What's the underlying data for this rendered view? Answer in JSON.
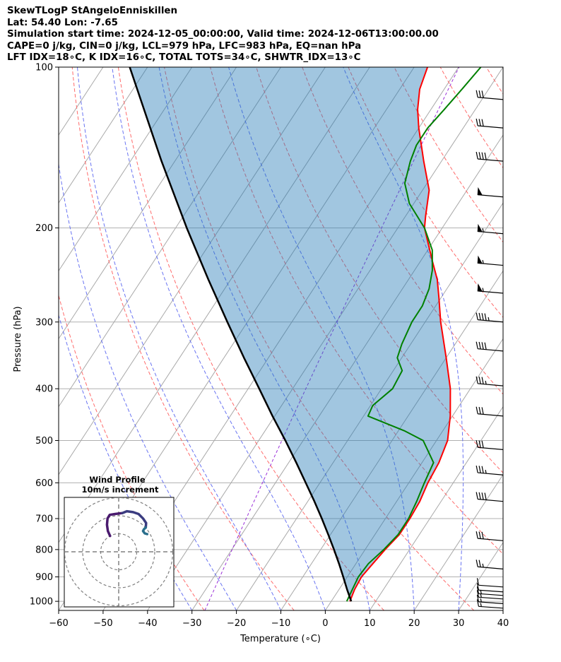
{
  "header": {
    "line1": "SkewTLogP StAngeloEnniskillen",
    "line2": "Lat: 54.40   Lon: -7.65",
    "line3": "Simulation start time: 2024-12-05_00:00:00, Valid time: 2024-12-06T13:00:00.00",
    "line4": "CAPE=0 j/kg, CIN=0 j/kg, LCL=979 hPa, LFC=983 hPa, EQ=nan hPa",
    "line5": "LFT IDX=18∘C, K IDX=16∘C, TOTAL TOTS=34∘C, SHWTR_IDX=13∘C"
  },
  "chart_data": [
    {
      "type": "line",
      "subtype": "skew-t log-p",
      "xlabel": "Temperature (∘C)",
      "ylabel": "Pressure (hPa)",
      "xlim": [
        -60,
        40
      ],
      "ylim": [
        1040,
        100
      ],
      "y_scale": "log",
      "x_ticks": [
        "−60",
        "−50",
        "−40",
        "−30",
        "−20",
        "−10",
        "0",
        "10",
        "20",
        "30",
        "40"
      ],
      "y_ticks": [
        "100",
        "200",
        "300",
        "400",
        "500",
        "600",
        "700",
        "800",
        "900",
        "1000"
      ],
      "grid": true,
      "series": [
        {
          "role": "temperature",
          "color": "#ff0000",
          "points": [
            [
              1000,
              4.2
            ],
            [
              950,
              3.5
            ],
            [
              900,
              3.2
            ],
            [
              850,
              3.8
            ],
            [
              800,
              4.5
            ],
            [
              750,
              5.5
            ],
            [
              700,
              5.5
            ],
            [
              650,
              5.2
            ],
            [
              600,
              4.3
            ],
            [
              550,
              3.8
            ],
            [
              500,
              2.5
            ],
            [
              450,
              -0.5
            ],
            [
              400,
              -4.5
            ],
            [
              350,
              -10
            ],
            [
              300,
              -16.5
            ],
            [
              270,
              -20.5
            ],
            [
              250,
              -23.5
            ],
            [
              230,
              -27.5
            ],
            [
              200,
              -34
            ],
            [
              190,
              -35.5
            ],
            [
              170,
              -38.5
            ],
            [
              150,
              -44
            ],
            [
              130,
              -50
            ],
            [
              120,
              -53
            ],
            [
              110,
              -55.5
            ],
            [
              100,
              -57
            ]
          ]
        },
        {
          "role": "dewpoint",
          "color": "#008000",
          "points": [
            [
              1000,
              3.5
            ],
            [
              950,
              3.0
            ],
            [
              900,
              2.5
            ],
            [
              850,
              2.8
            ],
            [
              800,
              4.2
            ],
            [
              750,
              5.2
            ],
            [
              700,
              5.2
            ],
            [
              650,
              4.5
            ],
            [
              600,
              3.5
            ],
            [
              550,
              2.6
            ],
            [
              500,
              -3
            ],
            [
              480,
              -8.5
            ],
            [
              450,
              -19
            ],
            [
              430,
              -19.5
            ],
            [
              400,
              -17.5
            ],
            [
              370,
              -18
            ],
            [
              350,
              -21
            ],
            [
              330,
              -22
            ],
            [
              300,
              -23
            ],
            [
              280,
              -23
            ],
            [
              260,
              -24
            ],
            [
              240,
              -26
            ],
            [
              220,
              -29
            ],
            [
              200,
              -34
            ],
            [
              180,
              -41
            ],
            [
              165,
              -45
            ],
            [
              150,
              -47
            ],
            [
              140,
              -48
            ],
            [
              130,
              -48
            ],
            [
              120,
              -47
            ],
            [
              110,
              -46
            ],
            [
              100,
              -45
            ]
          ]
        },
        {
          "role": "parcel",
          "color": "#000000",
          "points": [
            [
              1000,
              4.5
            ],
            [
              950,
              1.8
            ],
            [
              900,
              -0.9
            ],
            [
              850,
              -3.8
            ],
            [
              800,
              -7
            ],
            [
              750,
              -10.5
            ],
            [
              700,
              -14.3
            ],
            [
              650,
              -18.5
            ],
            [
              600,
              -23.2
            ],
            [
              550,
              -28.3
            ],
            [
              500,
              -34
            ],
            [
              450,
              -40.5
            ],
            [
              400,
              -47.5
            ],
            [
              350,
              -55.5
            ],
            [
              300,
              -64.5
            ],
            [
              250,
              -75
            ],
            [
              200,
              -87.5
            ],
            [
              150,
              -103
            ],
            [
              100,
              -124
            ]
          ]
        }
      ],
      "wind_barbs": [
        {
          "p": 1030,
          "speed_kt": 15
        },
        {
          "p": 1010,
          "speed_kt": 15
        },
        {
          "p": 990,
          "speed_kt": 15
        },
        {
          "p": 975,
          "speed_kt": 15
        },
        {
          "p": 960,
          "speed_kt": 10
        },
        {
          "p": 940,
          "speed_kt": 10
        },
        {
          "p": 870,
          "speed_kt": 25
        },
        {
          "p": 770,
          "speed_kt": 30
        },
        {
          "p": 650,
          "speed_kt": 40
        },
        {
          "p": 580,
          "speed_kt": 35
        },
        {
          "p": 520,
          "speed_kt": 30
        },
        {
          "p": 450,
          "speed_kt": 30
        },
        {
          "p": 395,
          "speed_kt": 35
        },
        {
          "p": 340,
          "speed_kt": 40
        },
        {
          "p": 300,
          "speed_kt": 45
        },
        {
          "p": 265,
          "speed_kt": 55
        },
        {
          "p": 235,
          "speed_kt": 55
        },
        {
          "p": 205,
          "speed_kt": 55
        },
        {
          "p": 175,
          "speed_kt": 50
        },
        {
          "p": 150,
          "speed_kt": 40
        },
        {
          "p": 130,
          "speed_kt": 30
        },
        {
          "p": 115,
          "speed_kt": 30
        }
      ]
    },
    {
      "type": "line",
      "subtype": "hodograph",
      "title": "Wind Profile",
      "subtitle": "10m/s increment",
      "rings_ms": [
        10,
        20,
        30
      ],
      "segments": [
        {
          "color": "#4a1a6e",
          "points": [
            [
              -4.8,
              8.8
            ],
            [
              -6.0,
              11.5
            ],
            [
              -6.5,
              15.0
            ],
            [
              -6.2,
              18.5
            ],
            [
              -5.0,
              20.5
            ],
            [
              -2.0,
              21.0
            ],
            [
              2.0,
              21.5
            ]
          ]
        },
        {
          "color": "#3b3c80",
          "points": [
            [
              2.0,
              21.5
            ],
            [
              4.5,
              22.5
            ],
            [
              8.0,
              22.0
            ],
            [
              11.0,
              21.0
            ],
            [
              13.5,
              18.5
            ],
            [
              15.2,
              16.0
            ],
            [
              15.0,
              13.5
            ]
          ]
        },
        {
          "color": "#2b6f8c",
          "points": [
            [
              15.0,
              13.5
            ],
            [
              14.0,
              12.5
            ],
            [
              13.5,
              11.5
            ],
            [
              14.5,
              10.2
            ],
            [
              15.8,
              9.8
            ]
          ]
        }
      ]
    }
  ]
}
